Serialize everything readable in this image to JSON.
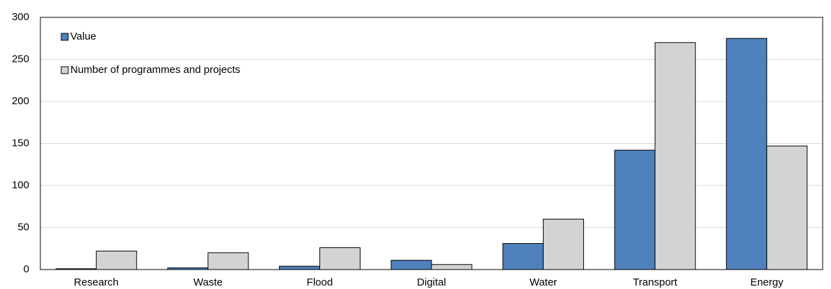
{
  "chart_data": {
    "type": "bar",
    "categories": [
      "Research",
      "Waste",
      "Flood",
      "Digital",
      "Water",
      "Transport",
      "Energy"
    ],
    "series": [
      {
        "name": "Value",
        "color": "#4f81bd",
        "values": [
          1,
          2,
          4,
          11,
          31,
          142,
          275
        ]
      },
      {
        "name": "Number of programmes and projects",
        "color": "#d3d3d3",
        "values": [
          22,
          20,
          26,
          6,
          60,
          270,
          147
        ]
      }
    ],
    "ylim": [
      0,
      300
    ],
    "yticks": [
      0,
      50,
      100,
      150,
      200,
      250,
      300
    ],
    "grid": true,
    "legend": "top-left"
  }
}
